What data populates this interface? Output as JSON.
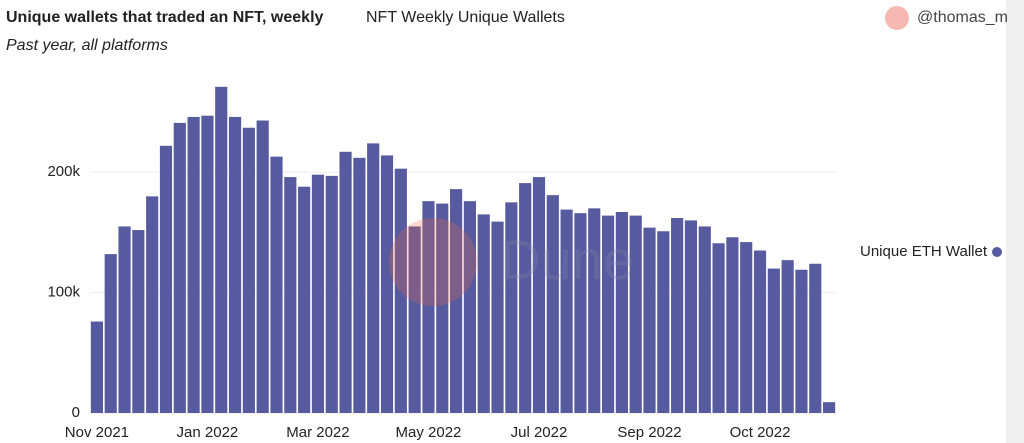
{
  "header": {
    "query_name": "NFT Weekly Unique Wallets",
    "author": "@thomas_m",
    "watermark": "Dune"
  },
  "chart_data": {
    "type": "bar",
    "title": "Unique wallets that traded an NFT, weekly",
    "subtitle": "Past year, all platforms",
    "categories": [
      "Nov 2021",
      null,
      null,
      null,
      null,
      null,
      null,
      null,
      "Jan 2022",
      null,
      null,
      null,
      null,
      null,
      null,
      null,
      "Mar 2022",
      null,
      null,
      null,
      null,
      null,
      null,
      null,
      "May 2022",
      null,
      null,
      null,
      null,
      null,
      null,
      null,
      "Jul 2022",
      null,
      null,
      null,
      null,
      null,
      null,
      null,
      "Sep 2022",
      null,
      null,
      null,
      null,
      null,
      null,
      null,
      "Oct 2022",
      null,
      null,
      null,
      null,
      null
    ],
    "series": [
      {
        "name": "Unique ETH Wallet",
        "color": "#565a9e",
        "values": [
          76000,
          132000,
          155000,
          152000,
          180000,
          222000,
          241000,
          246000,
          247000,
          271000,
          246000,
          237000,
          243000,
          213000,
          196000,
          188000,
          198000,
          197000,
          217000,
          212000,
          224000,
          214000,
          203000,
          155000,
          176000,
          174000,
          186000,
          176000,
          165000,
          159000,
          175000,
          191000,
          196000,
          181000,
          169000,
          166000,
          170000,
          164000,
          167000,
          164000,
          154000,
          151000,
          162000,
          160000,
          155000,
          141000,
          146000,
          142000,
          135000,
          120000,
          127000,
          119000,
          124000,
          9000
        ]
      }
    ],
    "ylim": [
      0,
      275000
    ],
    "yticks": [
      0,
      {
        "value": 100000,
        "label": "100k"
      },
      {
        "value": 200000,
        "label": "200k"
      }
    ],
    "grid": true,
    "legend": "right"
  }
}
